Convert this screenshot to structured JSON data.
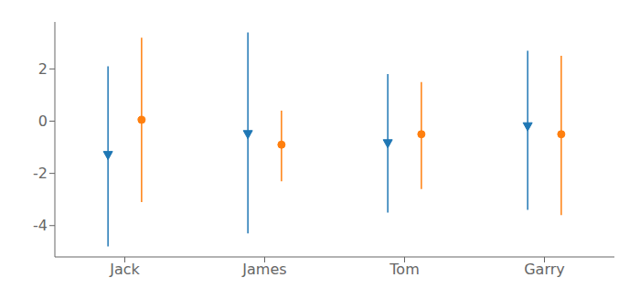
{
  "chart_data": {
    "type": "errorbar",
    "categories": [
      "Jack",
      "James",
      "Tom",
      "Garry"
    ],
    "series": [
      {
        "color": "#1f77b4",
        "marker": "triangle-down",
        "values": [
          -1.3,
          -0.5,
          -0.85,
          -0.2
        ],
        "yerr_low": [
          3.5,
          3.8,
          2.65,
          3.2
        ],
        "yerr_high": [
          3.4,
          3.9,
          2.65,
          2.9
        ]
      },
      {
        "color": "#ff7f0e",
        "marker": "circle",
        "values": [
          0.05,
          -0.9,
          -0.5,
          -0.5
        ],
        "yerr_low": [
          3.15,
          1.4,
          2.1,
          3.1
        ],
        "yerr_high": [
          3.15,
          1.3,
          2.0,
          3.0
        ]
      }
    ],
    "ylim": [
      -5.2,
      3.8
    ],
    "yticks": [
      -4,
      -2,
      0,
      2
    ],
    "grid": false
  }
}
